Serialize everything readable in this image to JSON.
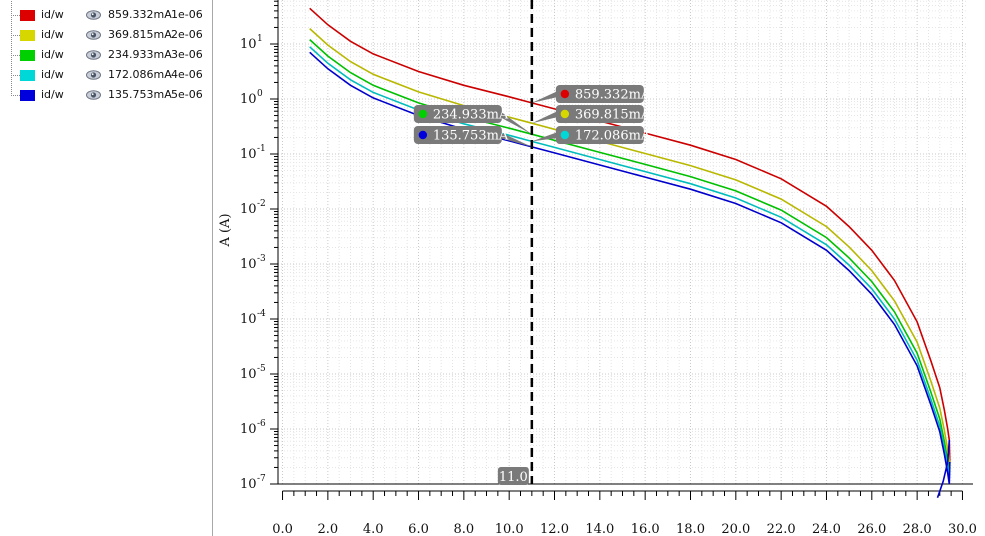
{
  "legend": {
    "items": [
      {
        "name": "id/w",
        "value": "859.332mA",
        "param": "1e-06",
        "color": "#dd0000"
      },
      {
        "name": "id/w",
        "value": "369.815mA",
        "param": "2e-06",
        "color": "#d7d700"
      },
      {
        "name": "id/w",
        "value": "234.933mA",
        "param": "3e-06",
        "color": "#00d000"
      },
      {
        "name": "id/w",
        "value": "172.086mA",
        "param": "4e-06",
        "color": "#00d8d8"
      },
      {
        "name": "id/w",
        "value": "135.753mA",
        "param": "5e-06",
        "color": "#0000dd"
      }
    ],
    "eye_icon": "eye-icon"
  },
  "chart_data": {
    "type": "line",
    "title": "",
    "xlabel": "",
    "ylabel": "A (A)",
    "yscale": "log",
    "xlim": [
      -0.2,
      30.2
    ],
    "ylim_decades": [
      -7,
      1.8
    ],
    "x_ticks": [
      "0.0",
      "2.0",
      "4.0",
      "6.0",
      "8.0",
      "10.0",
      "12.0",
      "14.0",
      "16.0",
      "18.0",
      "20.0",
      "22.0",
      "24.0",
      "26.0",
      "28.0",
      "30.0"
    ],
    "y_tick_labels": [
      {
        "base": "10",
        "exp": "1",
        "decade": 1
      },
      {
        "base": "10",
        "exp": "0",
        "decade": 0
      },
      {
        "base": "10",
        "exp": "-1",
        "decade": -1
      },
      {
        "base": "10",
        "exp": "-2",
        "decade": -2
      },
      {
        "base": "10",
        "exp": "-3",
        "decade": -3
      },
      {
        "base": "10",
        "exp": "-4",
        "decade": -4
      },
      {
        "base": "10",
        "exp": "-5",
        "decade": -5
      },
      {
        "base": "10",
        "exp": "-6",
        "decade": -6
      },
      {
        "base": "10",
        "exp": "-7",
        "decade": -7
      }
    ],
    "cursor": {
      "x": 11.0,
      "label": "11.0"
    },
    "grid": true,
    "series": [
      {
        "name": "id/w 1e-06",
        "color": "#cc0000",
        "log10_offset": 0.0
      },
      {
        "name": "id/w 2e-06",
        "color": "#b8b800",
        "log10_offset": -0.37
      },
      {
        "name": "id/w 3e-06",
        "color": "#00c000",
        "log10_offset": -0.57
      },
      {
        "name": "id/w 4e-06",
        "color": "#00bdbd",
        "log10_offset": -0.7
      },
      {
        "name": "id/w 5e-06",
        "color": "#0000cc",
        "log10_offset": -0.8
      }
    ],
    "base_curve": {
      "x": [
        1.2,
        2.0,
        3.0,
        4.0,
        6.0,
        8.0,
        10.0,
        11.0,
        12.0,
        14.0,
        16.0,
        18.0,
        20.0,
        22.0,
        24.0,
        25.0,
        26.0,
        27.0,
        28.0,
        28.6,
        29.0,
        29.2,
        29.35,
        29.42
      ],
      "log10_y": [
        1.65,
        1.35,
        1.05,
        0.82,
        0.5,
        0.25,
        0.04,
        -0.07,
        -0.18,
        -0.4,
        -0.62,
        -0.84,
        -1.1,
        -1.45,
        -1.95,
        -2.32,
        -2.75,
        -3.3,
        -4.05,
        -4.75,
        -5.25,
        -5.65,
        -6.0,
        -6.2
      ]
    },
    "tail": {
      "x": [
        29.42,
        29.35,
        29.15,
        28.9
      ],
      "log10_y": [
        -6.2,
        -6.6,
        -6.95,
        -7.25
      ]
    },
    "markers": [
      {
        "label": "859.332mA",
        "color": "#dd0000",
        "side": "right",
        "row": 0
      },
      {
        "label": "369.815mA",
        "color": "#d7d700",
        "side": "right",
        "row": 1
      },
      {
        "label": "234.933mA",
        "color": "#00d000",
        "side": "left",
        "row": 1
      },
      {
        "label": "172.086mA",
        "color": "#00d8d8",
        "side": "right",
        "row": 2
      },
      {
        "label": "135.753mA",
        "color": "#0000dd",
        "side": "left",
        "row": 2
      }
    ]
  }
}
